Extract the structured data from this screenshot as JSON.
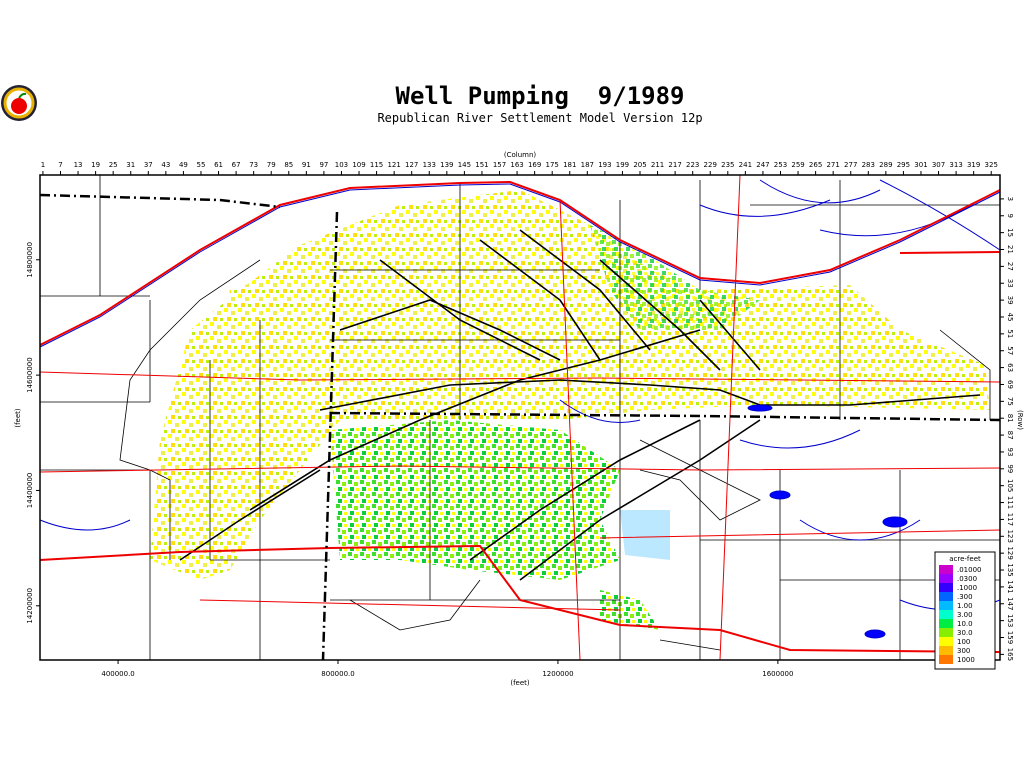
{
  "title": "Well Pumping  9/1989",
  "subtitle": "Republican River Settlement Model Version 12p",
  "map": {
    "column_label": "(Column)",
    "column_lim": [
      0,
      328
    ],
    "column_ticks": [
      1,
      7,
      13,
      19,
      25,
      31,
      37,
      43,
      49,
      55,
      61,
      67,
      73,
      79,
      85,
      91,
      97,
      103,
      109,
      115,
      121,
      127,
      133,
      139,
      145,
      151,
      157,
      163,
      169,
      175,
      181,
      187,
      193,
      199,
      205,
      211,
      217,
      223,
      229,
      235,
      241,
      247,
      253,
      259,
      265,
      271,
      277,
      283,
      289,
      295,
      301,
      307,
      313,
      319,
      325
    ],
    "row_label": "(Row)",
    "row_lim": [
      -5.5,
      167
    ],
    "row_ticks": [
      3,
      9,
      15,
      21,
      27,
      33,
      39,
      45,
      51,
      57,
      63,
      69,
      75,
      81,
      87,
      93,
      99,
      105,
      111,
      117,
      123,
      129,
      135,
      141,
      147,
      153,
      159,
      165
    ],
    "x_label": "(feet)",
    "xlim": [
      258000,
      2004000
    ],
    "xticks": [
      {
        "value": 400000,
        "label": "400000.0"
      },
      {
        "value": 800000,
        "label": "800000.0"
      },
      {
        "value": 1200000,
        "label": "1200000"
      },
      {
        "value": 1600000,
        "label": "1600000"
      }
    ],
    "y_label": "(feet)",
    "ylim": [
      14106000,
      14947000
    ],
    "yticks": [
      14800000,
      14600000,
      14400000,
      14200000
    ]
  },
  "legend": {
    "title": "acre-feet",
    "items": [
      {
        "label": ".01000",
        "color": "#cc00cc"
      },
      {
        "label": ".0300",
        "color": "#9900ff"
      },
      {
        "label": ".1000",
        "color": "#3300ff"
      },
      {
        "label": ".300",
        "color": "#0066ff"
      },
      {
        "label": "1.00",
        "color": "#00bbff"
      },
      {
        "label": "3.00",
        "color": "#00ffcc"
      },
      {
        "label": "10.0",
        "color": "#00ee44"
      },
      {
        "label": "30.0",
        "color": "#88ee00"
      },
      {
        "label": "100",
        "color": "#ffff00"
      },
      {
        "label": "300",
        "color": "#ffbb00"
      },
      {
        "label": "1000",
        "color": "#ff7700"
      }
    ]
  }
}
